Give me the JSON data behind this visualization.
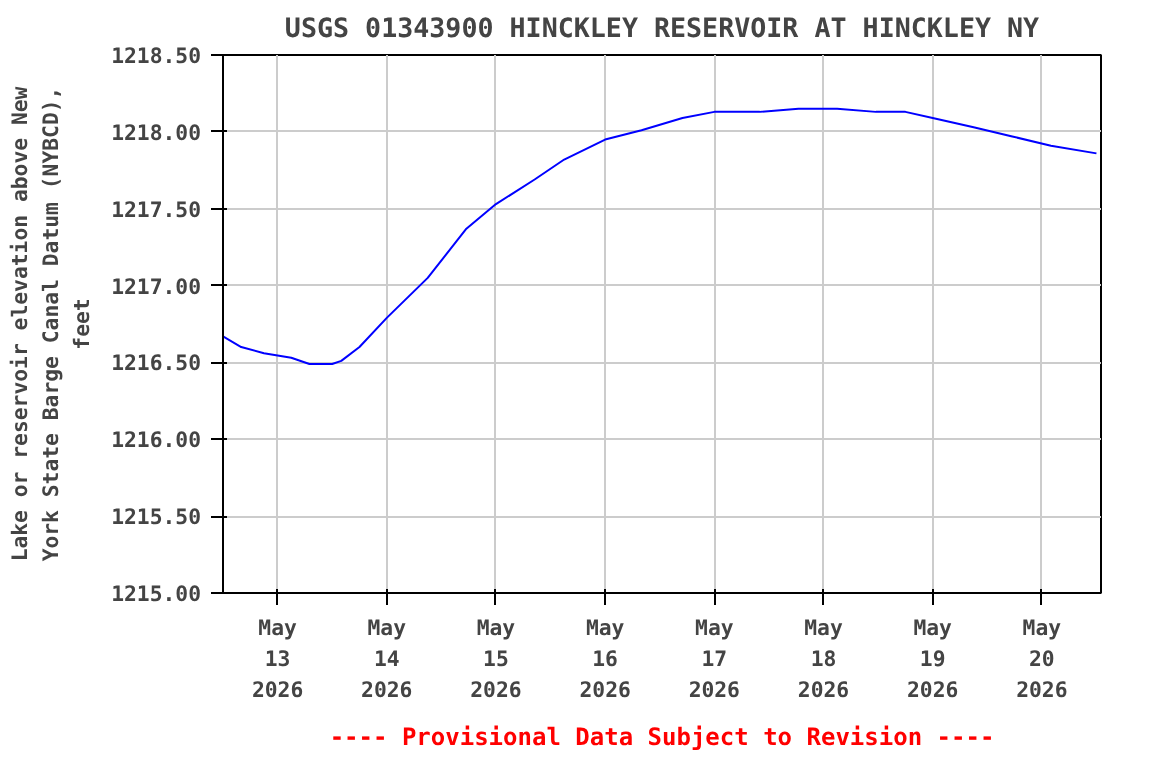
{
  "chart_data": {
    "type": "line",
    "title": "USGS 01343900 HINCKLEY RESERVOIR AT HINCKLEY NY",
    "ylabel": "Lake or reservoir elevation above New\nYork State Barge Canal Datum (NYBCD),\nfeet",
    "annotations": [
      "---- Provisional Data Subject to Revision ----"
    ],
    "x": [
      "2026-05-12T12:00",
      "2026-05-12T16:00",
      "2026-05-12T21:00",
      "2026-05-13T03:00",
      "2026-05-13T07:00",
      "2026-05-13T12:00",
      "2026-05-13T14:00",
      "2026-05-13T18:00",
      "2026-05-14T00:00",
      "2026-05-14T09:00",
      "2026-05-14T17:30",
      "2026-05-15T00:00",
      "2026-05-15T08:30",
      "2026-05-15T15:00",
      "2026-05-16T00:00",
      "2026-05-16T08:00",
      "2026-05-16T17:00",
      "2026-05-17T00:00",
      "2026-05-17T10:00",
      "2026-05-17T18:30",
      "2026-05-18T03:00",
      "2026-05-18T11:30",
      "2026-05-18T18:00",
      "2026-05-19T00:00",
      "2026-05-19T09:00",
      "2026-05-19T17:30",
      "2026-05-20T02:00",
      "2026-05-20T12:00"
    ],
    "series": [
      {
        "color": "#0000ff",
        "values": [
          1216.67,
          1216.6,
          1216.56,
          1216.53,
          1216.49,
          1216.49,
          1216.51,
          1216.6,
          1216.79,
          1217.05,
          1217.37,
          1217.53,
          1217.69,
          1217.82,
          1217.95,
          1218.01,
          1218.09,
          1218.13,
          1218.13,
          1218.15,
          1218.15,
          1218.13,
          1218.13,
          1218.09,
          1218.03,
          1217.97,
          1217.91,
          1217.86
        ]
      }
    ],
    "xlim": [
      "2026-05-12T12:00",
      "2026-05-20T13:00"
    ],
    "xticks": [
      {
        "value": "2026-05-13",
        "label": "May\n13\n2026"
      },
      {
        "value": "2026-05-14",
        "label": "May\n14\n2026"
      },
      {
        "value": "2026-05-15",
        "label": "May\n15\n2026"
      },
      {
        "value": "2026-05-16",
        "label": "May\n16\n2026"
      },
      {
        "value": "2026-05-17",
        "label": "May\n17\n2026"
      },
      {
        "value": "2026-05-18",
        "label": "May\n18\n2026"
      },
      {
        "value": "2026-05-19",
        "label": "May\n19\n2026"
      },
      {
        "value": "2026-05-20",
        "label": "May\n20\n2026"
      }
    ],
    "ylim": [
      1215.0,
      1218.5
    ],
    "yticks": [
      {
        "value": 1215.0,
        "label": "1215.00"
      },
      {
        "value": 1215.5,
        "label": "1215.50"
      },
      {
        "value": 1216.0,
        "label": "1216.00"
      },
      {
        "value": 1216.5,
        "label": "1216.50"
      },
      {
        "value": 1217.0,
        "label": "1217.00"
      },
      {
        "value": 1217.5,
        "label": "1217.50"
      },
      {
        "value": 1218.0,
        "label": "1218.00"
      },
      {
        "value": 1218.5,
        "label": "1218.50"
      }
    ],
    "grid": true,
    "line_style": "solid",
    "marker": "none"
  }
}
